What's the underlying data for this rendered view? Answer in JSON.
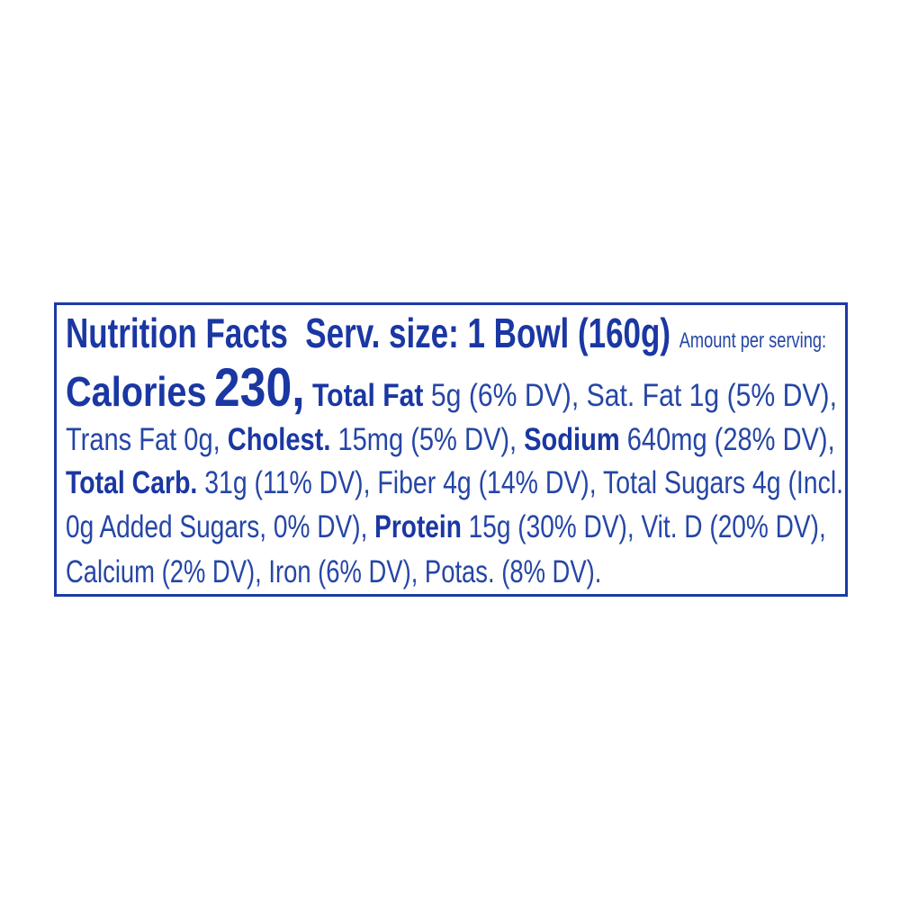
{
  "label": {
    "title": "Nutrition Facts",
    "serving_size": "Serv. size: 1 Bowl (160g)",
    "amount_per_serving": "Amount per serving:",
    "calories_label": "Calories",
    "calories_value": "230,",
    "total_fat_label": "Total Fat",
    "total_fat_value": "5g (6% DV), Sat. Fat 1g (5% DV),",
    "trans_fat": "Trans Fat 0g,",
    "cholest_label": "Cholest.",
    "cholest_value": "15mg (5% DV),",
    "sodium_label": "Sodium",
    "sodium_value": "640mg (28% DV),",
    "carb_label": "Total Carb.",
    "carb_value": "31g (11% DV), Fiber 4g (14% DV), Total Sugars 4g (Incl.",
    "added_sugars": "0g Added Sugars, 0% DV),",
    "protein_label": "Protein",
    "protein_value": "15g (30% DV), Vit. D (20% DV),",
    "minerals": "Calcium (2% DV), Iron (6% DV), Potas. (8% DV)."
  },
  "colors": {
    "text": "#2546a6",
    "bold": "#1a37a3",
    "border": "#1c3aa6"
  }
}
